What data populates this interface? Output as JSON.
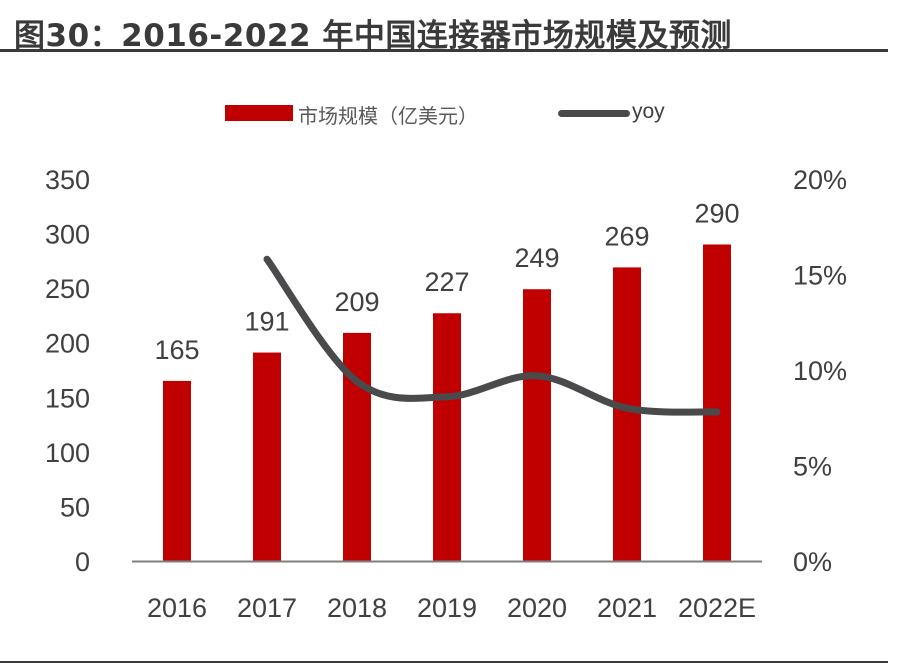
{
  "title": "图30：2016-2022 年中国连接器市场规模及预测",
  "legend": {
    "bar_label": "市场规模（亿美元）",
    "line_label": "yoy"
  },
  "colors": {
    "bar": "#C00000",
    "line": "#4A4A4C",
    "axis": "#7F7F7F",
    "text": "#404040"
  },
  "chart_data": {
    "type": "bar",
    "title": "图30：2016-2022 年中国连接器市场规模及预测",
    "categories": [
      "2016",
      "2017",
      "2018",
      "2019",
      "2020",
      "2021",
      "2022E"
    ],
    "series": [
      {
        "name": "市场规模（亿美元）",
        "type": "bar",
        "axis": "left",
        "values": [
          165,
          191,
          209,
          227,
          249,
          269,
          290
        ],
        "data_labels": [
          "165",
          "191",
          "209",
          "227",
          "249",
          "269",
          "290"
        ]
      },
      {
        "name": "yoy",
        "type": "line",
        "axis": "right",
        "smooth": true,
        "values": [
          null,
          15.8,
          9.4,
          8.6,
          9.7,
          8.0,
          7.8
        ],
        "unit": "%"
      }
    ],
    "left_axis": {
      "ylim": [
        0,
        350
      ],
      "ticks": [
        "0",
        "50",
        "100",
        "150",
        "200",
        "250",
        "300",
        "350"
      ]
    },
    "right_axis": {
      "ylim": [
        0,
        20
      ],
      "ticks": [
        "0%",
        "5%",
        "10%",
        "15%",
        "20%"
      ]
    },
    "xlabel": "",
    "ylabel": "",
    "grid": false,
    "legend_position": "top"
  }
}
